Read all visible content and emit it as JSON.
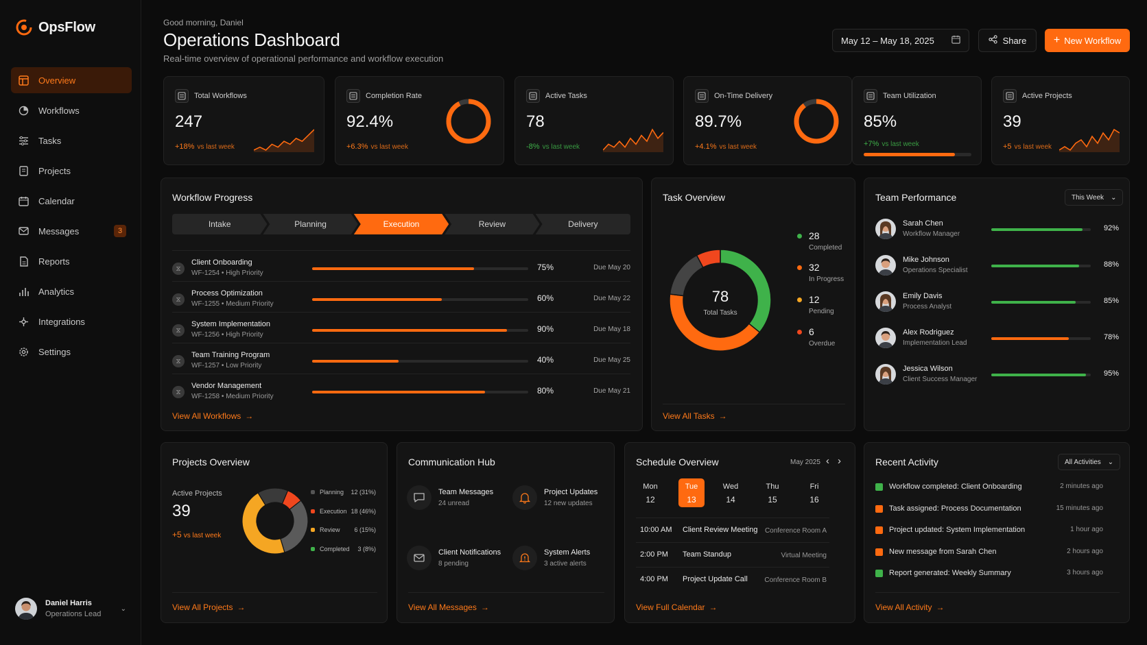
{
  "app": {
    "name": "OpsFlow"
  },
  "colors": {
    "accent": "#ff6a10",
    "success": "#3fb24a",
    "warning": "#f5a623",
    "danger": "#f0471e",
    "bg": "#0c0c0c",
    "card": "#141414"
  },
  "sidebar": {
    "items": [
      {
        "label": "Overview",
        "icon": "grid-icon",
        "active": true
      },
      {
        "label": "Workflows",
        "icon": "workflow-icon"
      },
      {
        "label": "Tasks",
        "icon": "tasks-icon"
      },
      {
        "label": "Projects",
        "icon": "folder-icon"
      },
      {
        "label": "Calendar",
        "icon": "calendar-icon"
      },
      {
        "label": "Messages",
        "icon": "message-icon",
        "badge": "3"
      },
      {
        "label": "Reports",
        "icon": "report-icon"
      },
      {
        "label": "Analytics",
        "icon": "bar-chart-icon"
      },
      {
        "label": "Integrations",
        "icon": "integrations-icon"
      },
      {
        "label": "Settings",
        "icon": "gear-icon"
      }
    ],
    "user": {
      "name": "Daniel Harris",
      "role": "Operations Lead"
    }
  },
  "header": {
    "greeting": "Good morning, Daniel",
    "title": "Operations Dashboard",
    "subtitle": "Real-time overview of operational performance and workflow execution",
    "date_range": "May 12 – May 18, 2025",
    "share_label": "Share",
    "new_label": "New Workflow"
  },
  "kpis": [
    {
      "label": "Total Workflows",
      "value": "247",
      "delta": "+18%",
      "vs": "vs last week",
      "trend": "up",
      "visual": "sparkline",
      "spark": [
        2,
        3,
        2,
        4,
        3,
        5,
        4,
        6,
        5,
        7,
        9
      ]
    },
    {
      "label": "Completion Rate",
      "value": "92.4%",
      "delta": "+6.3%",
      "vs": "vs last week",
      "trend": "up",
      "visual": "ring",
      "ring": 0.924
    },
    {
      "label": "Active Tasks",
      "value": "78",
      "delta": "-8%",
      "vs": "vs last week",
      "trend": "down",
      "visual": "sparkline",
      "spark": [
        2,
        4,
        3,
        5,
        3,
        6,
        4,
        7,
        5,
        9,
        6,
        8
      ]
    },
    {
      "label": "On-Time Delivery",
      "value": "89.7%",
      "delta": "+4.1%",
      "vs": "vs last week",
      "trend": "up",
      "visual": "ring",
      "ring": 0.897
    },
    {
      "label": "Team Utilization",
      "value": "85%",
      "delta": "+7%",
      "vs": "vs last week",
      "trend": "up-green",
      "visual": "bar",
      "bar": 0.85
    },
    {
      "label": "Active Projects",
      "value": "39",
      "delta": "+5",
      "vs": "vs last week",
      "trend": "up",
      "visual": "sparkline",
      "spark": [
        2,
        3,
        2,
        4,
        5,
        3,
        6,
        4,
        7,
        5,
        8,
        7
      ]
    }
  ],
  "workflow_progress": {
    "title": "Workflow Progress",
    "stages": [
      {
        "label": "Intake"
      },
      {
        "label": "Planning"
      },
      {
        "label": "Execution",
        "active": true
      },
      {
        "label": "Review"
      },
      {
        "label": "Delivery"
      }
    ],
    "items": [
      {
        "name": "Client Onboarding",
        "id": "WF-1254",
        "priority": "High Priority",
        "progress": 0.75,
        "pct": "75%",
        "due": "Due May 20"
      },
      {
        "name": "Process Optimization",
        "id": "WF-1255",
        "priority": "Medium Priority",
        "progress": 0.6,
        "pct": "60%",
        "due": "Due May 22"
      },
      {
        "name": "System Implementation",
        "id": "WF-1256",
        "priority": "High Priority",
        "progress": 0.9,
        "pct": "90%",
        "due": "Due May 18"
      },
      {
        "name": "Team Training Program",
        "id": "WF-1257",
        "priority": "Low Priority",
        "progress": 0.4,
        "pct": "40%",
        "due": "Due May 25"
      },
      {
        "name": "Vendor Management",
        "id": "WF-1258",
        "priority": "Medium Priority",
        "progress": 0.8,
        "pct": "80%",
        "due": "Due May 21"
      }
    ],
    "link": "View All Workflows"
  },
  "task_overview": {
    "title": "Task Overview",
    "total": "78",
    "total_label": "Total Tasks",
    "segments": [
      {
        "value": "28",
        "label": "Completed",
        "color": "#3fb24a"
      },
      {
        "value": "32",
        "label": "In Progress",
        "color": "#ff6a10"
      },
      {
        "value": "12",
        "label": "Pending",
        "color": "#f5a623"
      },
      {
        "value": "6",
        "label": "Overdue",
        "color": "#f0471e"
      }
    ],
    "link": "View All Tasks"
  },
  "team_performance": {
    "title": "Team Performance",
    "filter": "This Week",
    "members": [
      {
        "name": "Sarah Chen",
        "role": "Workflow Manager",
        "score": 0.92,
        "pct": "92%",
        "color": "#3fb24a",
        "gender": "f"
      },
      {
        "name": "Mike Johnson",
        "role": "Operations Specialist",
        "score": 0.88,
        "pct": "88%",
        "color": "#3fb24a",
        "gender": "m"
      },
      {
        "name": "Emily Davis",
        "role": "Process Analyst",
        "score": 0.85,
        "pct": "85%",
        "color": "#3fb24a",
        "gender": "f"
      },
      {
        "name": "Alex Rodriguez",
        "role": "Implementation Lead",
        "score": 0.78,
        "pct": "78%",
        "color": "#ff6a10",
        "gender": "m"
      },
      {
        "name": "Jessica Wilson",
        "role": "Client Success Manager",
        "score": 0.95,
        "pct": "95%",
        "color": "#3fb24a",
        "gender": "f"
      }
    ]
  },
  "projects_overview": {
    "title": "Projects Overview",
    "label": "Active Projects",
    "value": "39",
    "delta": "+5",
    "vs": "vs last week",
    "segments": [
      {
        "label": "Planning",
        "value": "12 (31%)",
        "share": 0.31,
        "color": "#555555"
      },
      {
        "label": "Execution",
        "value": "18 (46%)",
        "share": 0.46,
        "color": "#f0471e"
      },
      {
        "label": "Review",
        "value": "6 (15%)",
        "share": 0.15,
        "color": "#f5a623"
      },
      {
        "label": "Completed",
        "value": "3 (8%)",
        "share": 0.08,
        "color": "#3fb24a"
      }
    ],
    "link": "View All Projects"
  },
  "communication_hub": {
    "title": "Communication Hub",
    "items": [
      {
        "title": "Team Messages",
        "sub": "24 unread",
        "icon": "chat-icon"
      },
      {
        "title": "Project Updates",
        "sub": "12 new updates",
        "icon": "bell-icon"
      },
      {
        "title": "Client Notifications",
        "sub": "8 pending",
        "icon": "mail-icon"
      },
      {
        "title": "System Alerts",
        "sub": "3 active alerts",
        "icon": "alert-icon"
      }
    ],
    "link": "View All Messages"
  },
  "schedule": {
    "title": "Schedule Overview",
    "month": "May 2025",
    "days": [
      {
        "name": "Mon",
        "date": "12"
      },
      {
        "name": "Tue",
        "date": "13",
        "active": true
      },
      {
        "name": "Wed",
        "date": "14"
      },
      {
        "name": "Thu",
        "date": "15"
      },
      {
        "name": "Fri",
        "date": "16"
      }
    ],
    "events": [
      {
        "time": "10:00 AM",
        "name": "Client Review Meeting",
        "location": "Conference Room A"
      },
      {
        "time": "2:00 PM",
        "name": "Team Standup",
        "location": "Virtual Meeting"
      },
      {
        "time": "4:00 PM",
        "name": "Project Update Call",
        "location": "Conference Room B"
      }
    ],
    "link": "View Full Calendar"
  },
  "recent_activity": {
    "title": "Recent Activity",
    "filter": "All Activities",
    "items": [
      {
        "text": "Workflow completed: Client Onboarding",
        "time": "2 minutes ago",
        "color": "#3fb24a"
      },
      {
        "text": "Task assigned: Process Documentation",
        "time": "15 minutes ago",
        "color": "#ff6a10"
      },
      {
        "text": "Project updated: System Implementation",
        "time": "1 hour ago",
        "color": "#ff6a10"
      },
      {
        "text": "New message from Sarah Chen",
        "time": "2 hours ago",
        "color": "#ff6a10"
      },
      {
        "text": "Report generated: Weekly Summary",
        "time": "3 hours ago",
        "color": "#3fb24a"
      }
    ],
    "link": "View All Activity"
  }
}
